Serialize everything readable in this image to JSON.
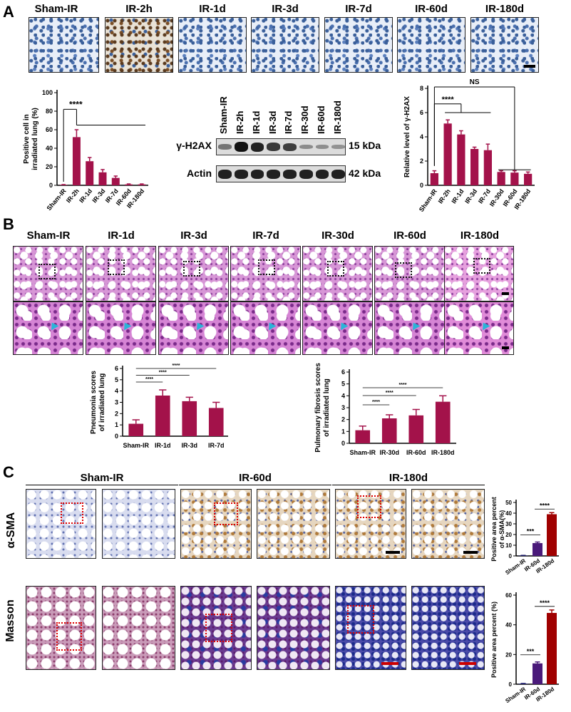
{
  "panels": {
    "a": "A",
    "b": "B",
    "c": "C"
  },
  "panelA": {
    "labels": [
      "Sham-IR",
      "IR-2h",
      "IR-1d",
      "IR-3d",
      "IR-7d",
      "IR-60d",
      "IR-180d"
    ],
    "blot": {
      "lanes": [
        "Sham-IR",
        "IR-2h",
        "IR-1d",
        "IR-3d",
        "IR-7d",
        "IR-30d",
        "IR-60d",
        "IR-180d"
      ],
      "rows": [
        {
          "name": "γ-H2AX",
          "kda": "15 kDa",
          "intensity": [
            0.35,
            1.0,
            0.9,
            0.75,
            0.7,
            0.2,
            0.18,
            0.15
          ]
        },
        {
          "name": "Actin",
          "kda": "42 kDa",
          "intensity": [
            0.9,
            0.9,
            0.9,
            0.9,
            0.9,
            0.9,
            0.9,
            0.9
          ]
        }
      ]
    }
  },
  "panelB": {
    "labels": [
      "Sham-IR",
      "IR-1d",
      "IR-3d",
      "IR-7d",
      "IR-30d",
      "IR-60d",
      "IR-180d"
    ]
  },
  "panelC": {
    "columns": [
      "Sham-IR",
      "IR-60d",
      "IR-180d"
    ],
    "rows": [
      "α-SMA",
      "Masson"
    ]
  },
  "chart_data": [
    {
      "type": "bar",
      "categories": [
        "Sham-IR",
        "IR-2h",
        "IR-1d",
        "IR-3d",
        "IR-7d",
        "IR-60d",
        "IR-180d"
      ],
      "values": [
        0.5,
        52,
        26,
        14,
        8,
        1,
        1
      ],
      "errors": [
        0.3,
        8,
        4,
        3,
        2,
        0.5,
        0.5
      ],
      "ylabel": "Positive cell in irradiated lung (%)",
      "ylim": [
        0,
        100
      ],
      "yticks": [
        0,
        20,
        40,
        60,
        80,
        100
      ],
      "significance": [
        "****"
      ],
      "color": "#a3124a"
    },
    {
      "type": "bar",
      "categories": [
        "Sham-IR",
        "IR-2h",
        "IR-1d",
        "IR-3d",
        "IR-7d",
        "IR-30d",
        "IR-60d",
        "IR-180d"
      ],
      "values": [
        1.0,
        5.1,
        4.2,
        3.0,
        2.9,
        1.1,
        1.05,
        0.95
      ],
      "errors": [
        0.2,
        0.3,
        0.3,
        0.15,
        0.5,
        0.1,
        0.15,
        0.15
      ],
      "ylabel": "Relative level of γ-H2AX",
      "ylim": [
        0,
        8
      ],
      "yticks": [
        0,
        2,
        4,
        6,
        8
      ],
      "significance": [
        "NS",
        "****"
      ],
      "color": "#a3124a"
    },
    {
      "type": "bar",
      "categories": [
        "Sham-IR",
        "IR-1d",
        "IR-3d",
        "IR-7d"
      ],
      "values": [
        1.1,
        3.6,
        3.1,
        2.5
      ],
      "errors": [
        0.35,
        0.5,
        0.35,
        0.5
      ],
      "ylabel": "Pneumonia scores of irradiated lung",
      "ylim": [
        0,
        6
      ],
      "yticks": [
        0,
        1,
        2,
        3,
        4,
        5,
        6
      ],
      "significance": [
        "****",
        "****",
        "****"
      ],
      "color": "#a3124a"
    },
    {
      "type": "bar",
      "categories": [
        "Sham-IR",
        "IR-30d",
        "IR-60d",
        "IR-180d"
      ],
      "values": [
        1.1,
        2.1,
        2.35,
        3.5
      ],
      "errors": [
        0.35,
        0.3,
        0.5,
        0.5
      ],
      "ylabel": "Pulmonary fibrosis scores of irradiated lung",
      "ylim": [
        0,
        6
      ],
      "yticks": [
        0,
        1,
        2,
        3,
        4,
        5,
        6
      ],
      "significance": [
        "****",
        "****",
        "****"
      ],
      "color": "#a3124a"
    },
    {
      "type": "bar",
      "categories": [
        "Sham-IR",
        "IR-60d",
        "IR-180d"
      ],
      "values": [
        0.3,
        12,
        39
      ],
      "errors": [
        0.2,
        1,
        1.5
      ],
      "ylabel": "Positive area percent of α-SMA(%)",
      "ylim": [
        0,
        50
      ],
      "yticks": [
        0,
        10,
        20,
        30,
        40,
        50
      ],
      "significance": [
        "***",
        "****"
      ],
      "colors": [
        "#1a1a6a",
        "#4a1a7a",
        "#a00000"
      ]
    },
    {
      "type": "bar",
      "categories": [
        "Sham-IR",
        "IR-60d",
        "IR-180d"
      ],
      "values": [
        0.3,
        14,
        48
      ],
      "errors": [
        0.2,
        1,
        2
      ],
      "ylabel": "Positive area percent (%)",
      "ylim": [
        0,
        60
      ],
      "yticks": [
        0,
        20,
        40,
        60
      ],
      "significance": [
        "***",
        "****"
      ],
      "colors": [
        "#1a1a6a",
        "#4a1a7a",
        "#a00000"
      ]
    }
  ]
}
